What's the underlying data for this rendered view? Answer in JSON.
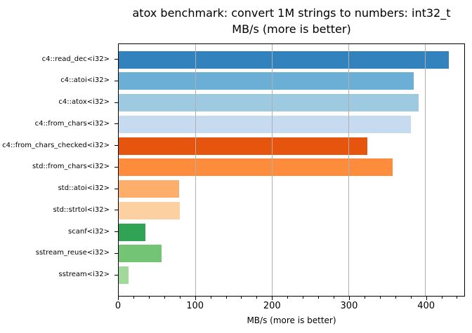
{
  "chart_data": {
    "type": "bar",
    "orientation": "horizontal",
    "title_lines": [
      "atox benchmark: convert 1M strings to numbers: int32_t",
      "MB/s (more is better)"
    ],
    "xlabel": "MB/s (more is better)",
    "categories": [
      "c4::read_dec<i32>",
      "c4::atoi<i32>",
      "c4::atox<i32>",
      "c4::from_chars<i32>",
      "c4::from_chars_checked<i32>",
      "std::from_chars<i32>",
      "std::atoi<i32>",
      "std::strtol<i32>",
      "scanf<i32>",
      "sstream_reuse<i32>",
      "sstream<i32>"
    ],
    "values": [
      430,
      385,
      391,
      381,
      324,
      357,
      79,
      80,
      35,
      56,
      13
    ],
    "bar_colors": [
      "#3182bd",
      "#6baed6",
      "#9ecae1",
      "#c6dbef",
      "#e6550d",
      "#fd8d3c",
      "#fdae6b",
      "#fdd0a2",
      "#31a354",
      "#74c476",
      "#a1d99b"
    ],
    "xlim": [
      0,
      450.5
    ],
    "x_major_ticks": [
      0,
      100,
      200,
      300,
      400
    ],
    "x_minor_tick_step": 20,
    "x_minor_tick_max": 440,
    "grid": "vertical major gridlines drawn above bars",
    "grid_color": "#b0b0b0",
    "legend": "none"
  }
}
